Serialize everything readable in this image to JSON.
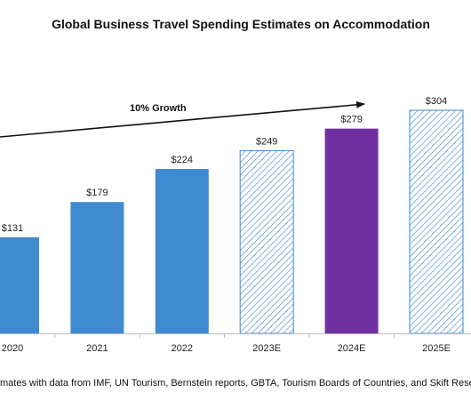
{
  "chart_data": {
    "type": "bar",
    "title": "Global Business Travel Spending Estimates on Accommodation",
    "categories": [
      "2020",
      "2021",
      "2022",
      "2023E",
      "2024E",
      "2025E"
    ],
    "values": [
      131,
      179,
      224,
      249,
      279,
      304
    ],
    "value_labels": [
      "$131",
      "$179",
      "$224",
      "$249",
      "$279",
      "$304"
    ],
    "bar_styles": [
      "solid",
      "solid",
      "solid",
      "hatched",
      "solid",
      "hatched"
    ],
    "bar_colors": [
      "#3F8AD0",
      "#3F8AD0",
      "#3F8AD0",
      "#3F8AD0",
      "#7030A0",
      "#3F8AD0"
    ],
    "annotation": "10% Growth",
    "ylim": [
      0,
      310
    ],
    "xlabel": "",
    "ylabel": "",
    "grid": false,
    "source_note": "mates with data from IMF, UN Tourism, Bernstein reports, GBTA, Tourism Boards of Countries, and Skift Research surveys, d"
  }
}
